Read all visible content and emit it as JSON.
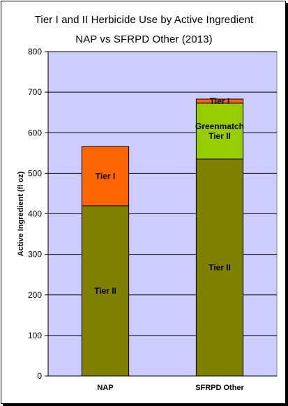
{
  "chart_data": {
    "type": "bar",
    "stacked": true,
    "title": "Tier I and II Herbicide Use by Active Ingredient",
    "subtitle": "NAP vs SFRPD Other (2013)",
    "xlabel": "",
    "ylabel": "Active Ingredient (fl oz)",
    "ylim": [
      0,
      800
    ],
    "yticks": [
      0,
      100,
      200,
      300,
      400,
      500,
      600,
      700,
      800
    ],
    "grid": true,
    "plot_background": "#ccccff",
    "categories": [
      "NAP",
      "SFRPD Other"
    ],
    "bars": [
      {
        "category": "NAP",
        "segments": [
          {
            "label": "Tier II",
            "value": 420,
            "color": "#808000"
          },
          {
            "label": "Tier I",
            "value": 146,
            "color": "#ff6600"
          }
        ]
      },
      {
        "category": "SFRPD Other",
        "segments": [
          {
            "label": "Tier II",
            "value": 535,
            "color": "#808000"
          },
          {
            "label": "Greenmatch Tier II",
            "value": 138,
            "color": "#99cc00"
          },
          {
            "label": "Tier I",
            "value": 10,
            "color": "#ff6600"
          }
        ]
      }
    ]
  }
}
